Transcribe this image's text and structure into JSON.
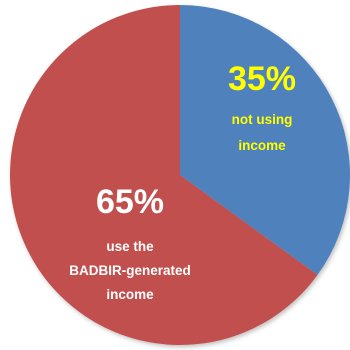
{
  "chart_data": {
    "type": "pie",
    "slices": [
      {
        "value": 35,
        "pct_label": "35%",
        "text_lines": [
          "not using",
          "income"
        ],
        "color": "#4f81bd",
        "label_color": "#ffff00"
      },
      {
        "value": 65,
        "pct_label": "65%",
        "text_lines": [
          "use the",
          "BADBIR-generated",
          "income"
        ],
        "color": "#c0504d",
        "label_color": "#ffffff"
      }
    ]
  }
}
